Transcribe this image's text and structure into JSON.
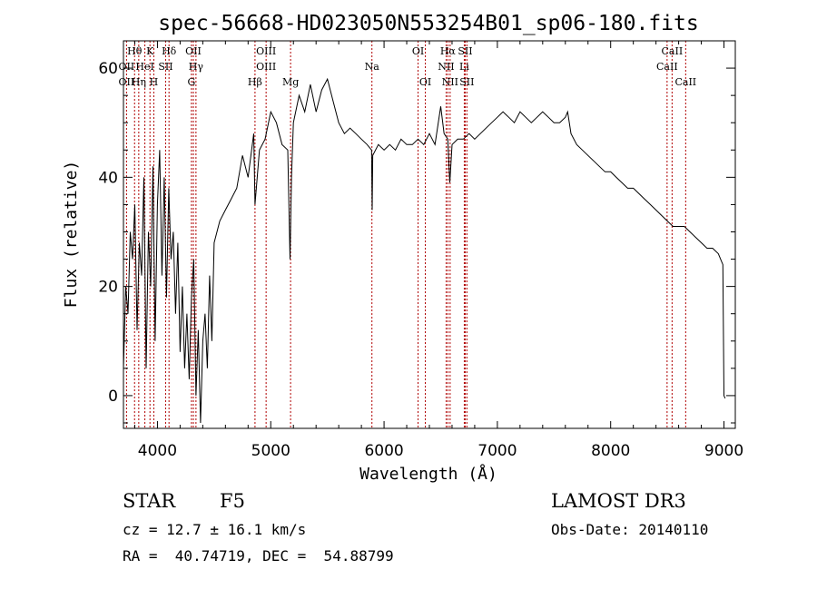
{
  "chart_data": {
    "type": "line",
    "title": "spec-56668-HD023050N553254B01_sp06-180.fits",
    "xlabel": "Wavelength (Å)",
    "ylabel": "Flux (relative)",
    "xlim": [
      3700,
      9100
    ],
    "ylim": [
      -6,
      65
    ],
    "xticks": [
      4000,
      5000,
      6000,
      7000,
      8000,
      9000
    ],
    "yticks": [
      0,
      20,
      40,
      60
    ],
    "grid": false,
    "series": [
      {
        "x": [
          3700,
          3720,
          3740,
          3760,
          3780,
          3800,
          3820,
          3840,
          3860,
          3880,
          3900,
          3920,
          3940,
          3960,
          3980,
          4000,
          4020,
          4040,
          4060,
          4080,
          4100,
          4120,
          4140,
          4160,
          4180,
          4200,
          4220,
          4240,
          4260,
          4280,
          4300,
          4320,
          4340,
          4360,
          4380,
          4400,
          4420,
          4440,
          4460,
          4480,
          4500,
          4550,
          4600,
          4650,
          4700,
          4750,
          4800,
          4850,
          4861,
          4900,
          4950,
          5000,
          5050,
          5100,
          5150,
          5170,
          5183,
          5200,
          5250,
          5300,
          5350,
          5400,
          5450,
          5500,
          5550,
          5600,
          5650,
          5700,
          5750,
          5800,
          5850,
          5890,
          5895,
          5900,
          5950,
          6000,
          6050,
          6100,
          6150,
          6200,
          6250,
          6300,
          6350,
          6400,
          6450,
          6500,
          6530,
          6563,
          6580,
          6600,
          6650,
          6700,
          6750,
          6800,
          6850,
          6900,
          6950,
          7000,
          7050,
          7100,
          7150,
          7200,
          7250,
          7300,
          7350,
          7400,
          7450,
          7500,
          7550,
          7600,
          7620,
          7650,
          7700,
          7750,
          7800,
          7850,
          7900,
          7950,
          8000,
          8050,
          8100,
          8150,
          8200,
          8250,
          8300,
          8350,
          8400,
          8450,
          8500,
          8550,
          8600,
          8650,
          8700,
          8750,
          8800,
          8850,
          8900,
          8950,
          8990,
          9000,
          9010
        ],
        "y": [
          5,
          20,
          15,
          30,
          25,
          35,
          12,
          28,
          22,
          40,
          5,
          30,
          20,
          42,
          10,
          35,
          45,
          22,
          40,
          18,
          38,
          25,
          30,
          15,
          28,
          8,
          20,
          5,
          15,
          3,
          18,
          25,
          0,
          12,
          -5,
          10,
          15,
          5,
          22,
          10,
          28,
          32,
          34,
          36,
          38,
          44,
          40,
          48,
          35,
          45,
          47,
          52,
          50,
          46,
          45,
          25,
          40,
          50,
          55,
          52,
          57,
          52,
          56,
          58,
          54,
          50,
          48,
          49,
          48,
          47,
          46,
          45,
          34,
          44,
          46,
          45,
          46,
          45,
          47,
          46,
          46,
          47,
          46,
          48,
          46,
          53,
          48,
          47,
          39,
          46,
          47,
          47,
          48,
          47,
          48,
          49,
          50,
          51,
          52,
          51,
          50,
          52,
          51,
          50,
          51,
          52,
          51,
          50,
          50,
          51,
          52,
          48,
          46,
          45,
          44,
          43,
          42,
          41,
          41,
          40,
          39,
          38,
          38,
          37,
          36,
          35,
          34,
          33,
          32,
          31,
          31,
          31,
          30,
          29,
          28,
          27,
          27,
          26,
          24,
          0,
          -0.5
        ]
      }
    ],
    "spectral_lines": [
      {
        "label": "Hθ",
        "x": 3798,
        "row": 0
      },
      {
        "label": "K",
        "x": 3934,
        "row": 0
      },
      {
        "label": "Hδ",
        "x": 4102,
        "row": 0
      },
      {
        "label": "OII",
        "x": 4317,
        "row": 0
      },
      {
        "label": "OIII",
        "x": 4959,
        "row": 0
      },
      {
        "label": "OI",
        "x": 6300,
        "row": 0
      },
      {
        "label": "Hα",
        "x": 6563,
        "row": 0
      },
      {
        "label": "SII",
        "x": 6716,
        "row": 0
      },
      {
        "label": "CaII",
        "x": 8542,
        "row": 0
      },
      {
        "label": "OII",
        "x": 3727,
        "row": 1
      },
      {
        "label": "HeI",
        "x": 3889,
        "row": 1
      },
      {
        "label": "SII",
        "x": 4072,
        "row": 1
      },
      {
        "label": "Hγ",
        "x": 4340,
        "row": 1
      },
      {
        "label": "OIII",
        "x": 4959,
        "row": 1
      },
      {
        "label": "Na",
        "x": 5893,
        "row": 1
      },
      {
        "label": "NII",
        "x": 6548,
        "row": 1
      },
      {
        "label": "Li",
        "x": 6708,
        "row": 1
      },
      {
        "label": "CaII",
        "x": 8498,
        "row": 1
      },
      {
        "label": "OII",
        "x": 3727,
        "row": 2
      },
      {
        "label": "Hη",
        "x": 3835,
        "row": 2
      },
      {
        "label": "H",
        "x": 3968,
        "row": 2
      },
      {
        "label": "G",
        "x": 4300,
        "row": 2
      },
      {
        "label": "Hβ",
        "x": 4861,
        "row": 2
      },
      {
        "label": "Mg",
        "x": 5175,
        "row": 2
      },
      {
        "label": "OI",
        "x": 6364,
        "row": 2
      },
      {
        "label": "NII",
        "x": 6583,
        "row": 2
      },
      {
        "label": "SII",
        "x": 6731,
        "row": 2
      },
      {
        "label": "CaII",
        "x": 8662,
        "row": 2
      }
    ]
  },
  "info": {
    "class": "STAR",
    "subclass": "F5",
    "survey": "LAMOST DR3",
    "cz": "cz = 12.7 ± 16.1 km/s",
    "obs_date": "Obs-Date: 20140110",
    "radec": "RA =  40.74719, DEC =  54.88799"
  }
}
